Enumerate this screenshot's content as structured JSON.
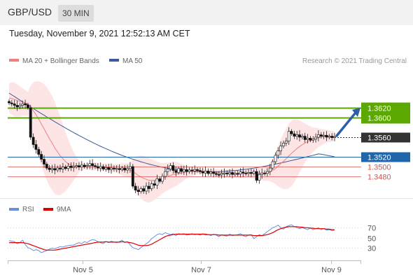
{
  "header": {
    "pair": "GBP/USD",
    "timeframe": "30 MIN"
  },
  "timestamp": "Tuesday, November 9, 2021 12:52:13 AM CET",
  "colors": {
    "ma20": "#f08080",
    "band_fill": "#fde0e0",
    "ma50": "#3a5a99",
    "candle": "#000000",
    "bull": "#4caf50",
    "bear": "#c62828",
    "green_level": "#5aa800",
    "blue_level": "#2266aa",
    "red_level": "#d9534f",
    "price_tag": "#333333",
    "arrow": "#2c5fa8",
    "rsi": "#6a8fd8",
    "rsi_ma": "#dd0000"
  },
  "legend": {
    "ma20_label": "MA 20 + Bollinger Bands",
    "ma50_label": "MA 50",
    "credit": "Research © 2021 Trading Central",
    "rsi_label": "RSI",
    "rsi_ma_label": "9MA"
  },
  "chart_data": [
    {
      "type": "candlestick",
      "title": "GBP/USD",
      "x_ticks": [
        "Nov 5",
        "Nov 7",
        "Nov 9"
      ],
      "ylim": [
        1.344,
        1.37
      ],
      "current_price": 1.356,
      "levels": [
        {
          "label": "1.3620",
          "value": 1.362,
          "kind": "resistance"
        },
        {
          "label": "1.3600",
          "value": 1.36,
          "kind": "resistance"
        },
        {
          "label": "1.3560",
          "value": 1.356,
          "kind": "current"
        },
        {
          "label": "1.3520",
          "value": 1.352,
          "kind": "pivot"
        },
        {
          "label": "1.3500",
          "value": 1.35,
          "kind": "support"
        },
        {
          "label": "1.3480",
          "value": 1.348,
          "kind": "support"
        }
      ],
      "closes": [
        1.363,
        1.3628,
        1.3625,
        1.3622,
        1.3625,
        1.3628,
        1.3626,
        1.362,
        1.356,
        1.3545,
        1.3535,
        1.3525,
        1.3515,
        1.3505,
        1.3497,
        1.3494,
        1.3496,
        1.3493,
        1.3497,
        1.3495,
        1.3499,
        1.3496,
        1.3501,
        1.3498,
        1.35,
        1.3502,
        1.3499,
        1.3503,
        1.35,
        1.3502,
        1.3506,
        1.3502,
        1.35,
        1.3497,
        1.35,
        1.3495,
        1.3498,
        1.3494,
        1.3497,
        1.3495,
        1.3496,
        1.3494,
        1.3497,
        1.3493,
        1.3496,
        1.35,
        1.346,
        1.3452,
        1.3449,
        1.3455,
        1.345,
        1.346,
        1.3455,
        1.3465,
        1.3462,
        1.3475,
        1.347,
        1.348,
        1.349,
        1.3495,
        1.3502,
        1.3492,
        1.3488,
        1.3496,
        1.349,
        1.3494,
        1.349,
        1.3493,
        1.3491,
        1.3494,
        1.3492,
        1.349,
        1.3487,
        1.3491,
        1.3486,
        1.3489,
        1.3486,
        1.3484,
        1.3483,
        1.3486,
        1.3487,
        1.3485,
        1.3488,
        1.3484,
        1.3486,
        1.3485,
        1.3489,
        1.3487,
        1.3486,
        1.3488,
        1.3486,
        1.349,
        1.3472,
        1.3484,
        1.3487,
        1.3486,
        1.349,
        1.3497,
        1.351,
        1.3523,
        1.3532,
        1.3542,
        1.3548,
        1.3552,
        1.3572,
        1.3567,
        1.3562,
        1.3565,
        1.356,
        1.3562,
        1.3555,
        1.3558,
        1.3554,
        1.3556,
        1.356,
        1.3565,
        1.3562,
        1.3564,
        1.356,
        1.3562,
        1.3559,
        1.3561
      ],
      "ma20": [
        1.364,
        1.3639,
        1.3637,
        1.3635,
        1.3633,
        1.3632,
        1.363,
        1.3628,
        1.3622,
        1.3614,
        1.3606,
        1.3597,
        1.3587,
        1.3577,
        1.3567,
        1.3557,
        1.3548,
        1.3538,
        1.353,
        1.3522,
        1.3516,
        1.351,
        1.3506,
        1.3503,
        1.3501,
        1.35,
        1.35,
        1.35,
        1.35,
        1.35,
        1.35,
        1.35,
        1.35,
        1.35,
        1.3499,
        1.3499,
        1.3499,
        1.3498,
        1.3497,
        1.3497,
        1.3496,
        1.3495,
        1.3494,
        1.3493,
        1.3493,
        1.3493,
        1.349,
        1.3486,
        1.3482,
        1.3479,
        1.3476,
        1.3474,
        1.3472,
        1.3472,
        1.3472,
        1.3473,
        1.3474,
        1.3476,
        1.3478,
        1.348,
        1.3482,
        1.3484,
        1.3485,
        1.3486,
        1.3487,
        1.3488,
        1.3489,
        1.349,
        1.349,
        1.3491,
        1.3491,
        1.3491,
        1.349,
        1.349,
        1.3489,
        1.3489,
        1.3488,
        1.3488,
        1.3487,
        1.3487,
        1.3486,
        1.3486,
        1.3486,
        1.3486,
        1.3486,
        1.3486,
        1.3486,
        1.3486,
        1.3486,
        1.3486,
        1.3486,
        1.3486,
        1.3486,
        1.3486,
        1.3486,
        1.3486,
        1.3487,
        1.3489,
        1.3492,
        1.3496,
        1.3501,
        1.3506,
        1.3511,
        1.3516,
        1.3522,
        1.3527,
        1.3532,
        1.3537,
        1.3541,
        1.3545,
        1.3548,
        1.3551,
        1.3553,
        1.3555,
        1.3557,
        1.3559,
        1.356,
        1.3561,
        1.3562,
        1.3562,
        1.3562,
        1.3562
      ],
      "band_upper": [
        1.367,
        1.3672,
        1.3672,
        1.3668,
        1.3664,
        1.366,
        1.3656,
        1.3652,
        1.3665,
        1.3672,
        1.3674,
        1.3674,
        1.3672,
        1.3668,
        1.3662,
        1.3654,
        1.3644,
        1.3632,
        1.3618,
        1.3602,
        1.3586,
        1.357,
        1.3555,
        1.3542,
        1.353,
        1.352,
        1.3512,
        1.3508,
        1.3506,
        1.3506,
        1.3507,
        1.3508,
        1.3508,
        1.3507,
        1.3506,
        1.3506,
        1.3506,
        1.3505,
        1.3505,
        1.3505,
        1.3505,
        1.3505,
        1.3506,
        1.3506,
        1.3507,
        1.3508,
        1.3515,
        1.352,
        1.3522,
        1.3523,
        1.3522,
        1.352,
        1.3518,
        1.3515,
        1.3512,
        1.351,
        1.3508,
        1.3507,
        1.3507,
        1.3508,
        1.3509,
        1.351,
        1.351,
        1.3508,
        1.3506,
        1.3504,
        1.3502,
        1.3501,
        1.35,
        1.3499,
        1.3498,
        1.3497,
        1.3496,
        1.3495,
        1.3495,
        1.3495,
        1.3495,
        1.3495,
        1.3495,
        1.3495,
        1.3495,
        1.3495,
        1.3495,
        1.3495,
        1.3495,
        1.3495,
        1.3495,
        1.3495,
        1.3495,
        1.3495,
        1.3495,
        1.3496,
        1.3498,
        1.3499,
        1.35,
        1.3501,
        1.3503,
        1.3508,
        1.3516,
        1.3528,
        1.3542,
        1.3556,
        1.3568,
        1.3578,
        1.3588,
        1.3594,
        1.3596,
        1.3596,
        1.3594,
        1.3591,
        1.3588,
        1.3585,
        1.3582,
        1.358,
        1.3579,
        1.3578,
        1.3577,
        1.3576,
        1.3575,
        1.3574,
        1.3573,
        1.3572
      ],
      "band_lower": [
        1.361,
        1.3606,
        1.3602,
        1.3602,
        1.3602,
        1.3604,
        1.3604,
        1.3604,
        1.3579,
        1.3556,
        1.3538,
        1.352,
        1.3502,
        1.3486,
        1.3472,
        1.346,
        1.3452,
        1.3444,
        1.3442,
        1.3442,
        1.3446,
        1.345,
        1.3457,
        1.3464,
        1.3472,
        1.348,
        1.3488,
        1.3492,
        1.3494,
        1.3494,
        1.3493,
        1.3492,
        1.3492,
        1.3493,
        1.3492,
        1.3492,
        1.3492,
        1.3491,
        1.3489,
        1.3489,
        1.3487,
        1.3485,
        1.3482,
        1.348,
        1.3479,
        1.3478,
        1.3465,
        1.3452,
        1.3442,
        1.3435,
        1.343,
        1.3428,
        1.3426,
        1.3429,
        1.3432,
        1.3436,
        1.344,
        1.3445,
        1.3449,
        1.3452,
        1.3455,
        1.3458,
        1.346,
        1.3464,
        1.3468,
        1.3472,
        1.3476,
        1.3479,
        1.348,
        1.3483,
        1.3484,
        1.3485,
        1.3484,
        1.3485,
        1.3483,
        1.3483,
        1.3481,
        1.3481,
        1.3479,
        1.3479,
        1.3477,
        1.3477,
        1.3477,
        1.3477,
        1.3477,
        1.3477,
        1.3477,
        1.3477,
        1.3477,
        1.3477,
        1.3477,
        1.3476,
        1.3474,
        1.3473,
        1.3472,
        1.3471,
        1.3471,
        1.347,
        1.3468,
        1.3464,
        1.346,
        1.3456,
        1.3454,
        1.3454,
        1.3456,
        1.346,
        1.3468,
        1.3478,
        1.3488,
        1.3499,
        1.3508,
        1.3517,
        1.3524,
        1.353,
        1.3535,
        1.354,
        1.3543,
        1.3546,
        1.3549,
        1.355,
        1.3551,
        1.3552
      ],
      "ma50_start": 1.365,
      "ma50_end": 1.352
    },
    {
      "type": "line",
      "title": "RSI",
      "series_labels": [
        "RSI",
        "9MA"
      ],
      "ylim": [
        10,
        90
      ],
      "y_ticks": [
        30,
        50,
        70
      ],
      "rsi": [
        44,
        43,
        42,
        38,
        40,
        45,
        36,
        30,
        28,
        24,
        26,
        24,
        20,
        22,
        24,
        27,
        29,
        28,
        30,
        32,
        31,
        33,
        34,
        35,
        35,
        38,
        40,
        38,
        42,
        40,
        44,
        46,
        45,
        42,
        40,
        38,
        42,
        40,
        43,
        41,
        40,
        42,
        45,
        40,
        42,
        36,
        30,
        28,
        26,
        30,
        34,
        38,
        42,
        48,
        52,
        56,
        58,
        56,
        60,
        58,
        56,
        58,
        54,
        58,
        57,
        58,
        55,
        56,
        58,
        56,
        57,
        55,
        58,
        55,
        56,
        54,
        57,
        55,
        52,
        56,
        54,
        53,
        57,
        54,
        55,
        56,
        58,
        54,
        52,
        55,
        56,
        48,
        52,
        56,
        54,
        58,
        62,
        66,
        70,
        72,
        75,
        70,
        67,
        72,
        74,
        76,
        72,
        70,
        68,
        70,
        68,
        66,
        70,
        66,
        68,
        70,
        66,
        68,
        65,
        66,
        64,
        65
      ],
      "ma9": [
        40,
        40,
        40,
        40,
        40,
        40,
        39,
        38,
        36,
        34,
        32,
        30,
        28,
        26,
        25,
        25,
        25,
        25,
        26,
        27,
        28,
        29,
        30,
        31,
        32,
        33,
        34,
        35,
        36,
        37,
        38,
        39,
        40,
        41,
        41,
        41,
        42,
        41,
        41,
        41,
        41,
        41,
        42,
        41,
        41,
        40,
        39,
        37,
        35,
        34,
        34,
        34,
        35,
        37,
        40,
        43,
        46,
        49,
        52,
        54,
        55,
        56,
        57,
        57,
        57,
        57,
        57,
        57,
        57,
        57,
        57,
        57,
        57,
        57,
        56,
        56,
        56,
        56,
        55,
        55,
        55,
        55,
        55,
        55,
        55,
        55,
        55,
        55,
        55,
        55,
        55,
        54,
        54,
        54,
        54,
        55,
        56,
        58,
        60,
        63,
        66,
        68,
        70,
        71,
        72,
        72,
        72,
        72,
        71,
        71,
        70,
        70,
        69,
        69,
        68,
        68,
        68,
        68,
        67,
        67,
        66,
        66
      ]
    }
  ]
}
